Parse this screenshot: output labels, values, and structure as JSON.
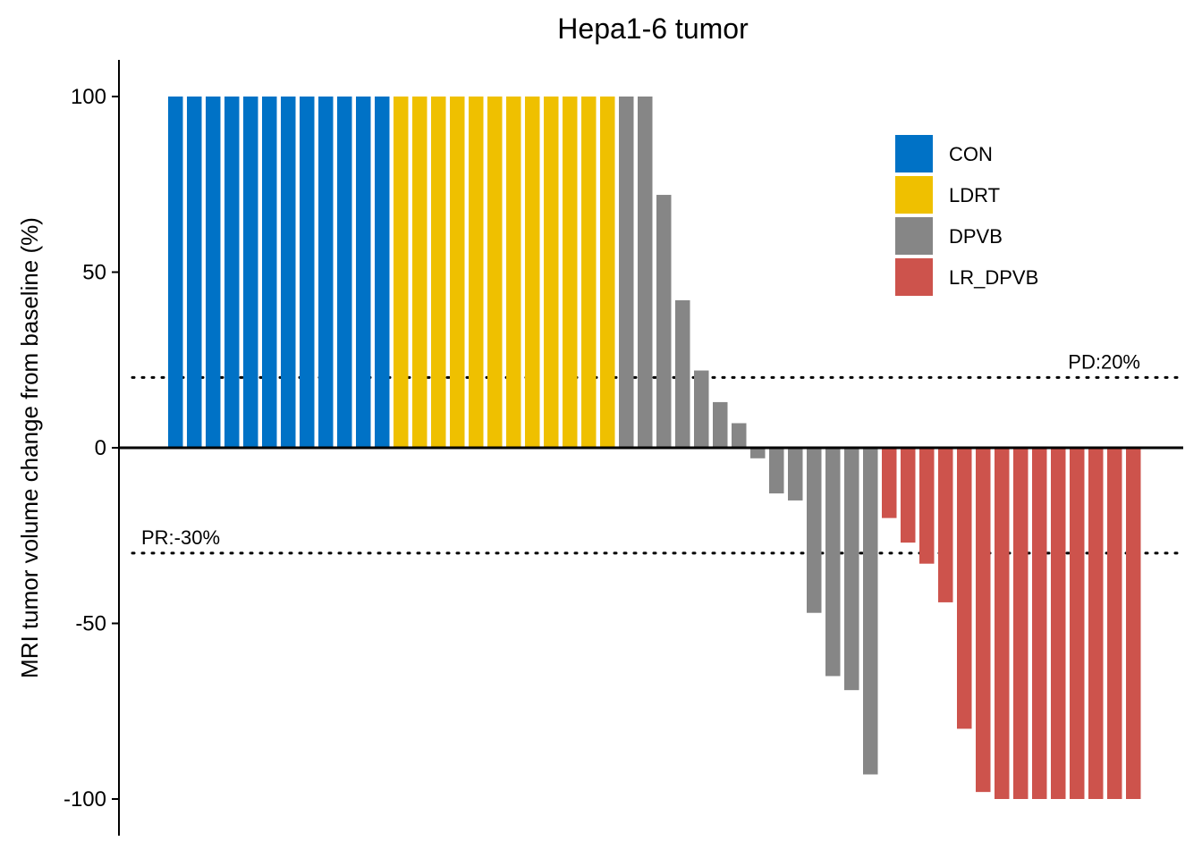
{
  "chart_data": {
    "type": "bar",
    "title": "Hepa1-6 tumor",
    "xlabel": "",
    "ylabel": "MRI tumor volume change from baseline (%)",
    "ylim": [
      -110,
      110
    ],
    "yticks": [
      100,
      50,
      0,
      -50,
      -100
    ],
    "grid": false,
    "legend_position": "top-right",
    "series": [
      {
        "name": "CON",
        "color": "#0072C6",
        "values": [
          100,
          100,
          100,
          100,
          100,
          100,
          100,
          100,
          100,
          100,
          100,
          100
        ]
      },
      {
        "name": "LDRT",
        "color": "#EFC000",
        "values": [
          100,
          100,
          100,
          100,
          100,
          100,
          100,
          100,
          100,
          100,
          100,
          100
        ]
      },
      {
        "name": "DPVB",
        "color": "#868686",
        "values": [
          100,
          100,
          72,
          42,
          22,
          13,
          7,
          -3,
          -13,
          -15,
          -47,
          -65,
          -69,
          -93
        ]
      },
      {
        "name": "LR_DPVB",
        "color": "#CD534C",
        "values": [
          -20,
          -27,
          -33,
          -44,
          -80,
          -98,
          -100,
          -100,
          -100,
          -100,
          -100,
          -100,
          -100,
          -100
        ]
      }
    ],
    "reference_lines": [
      {
        "value": 20,
        "label": "PD:20%"
      },
      {
        "value": -30,
        "label": "PR:-30%"
      }
    ]
  }
}
